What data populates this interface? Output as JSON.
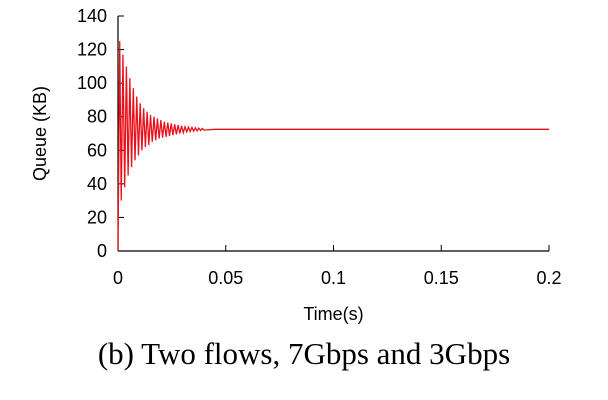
{
  "caption": "(b) Two flows, 7Gbps and 3Gbps",
  "chart_data": {
    "type": "line",
    "xlabel": "Time(s)",
    "ylabel": "Queue (KB)",
    "xlim": [
      0,
      0.2
    ],
    "ylim": [
      0,
      140
    ],
    "x_ticks": [
      0,
      0.05,
      0.1,
      0.15,
      0.2
    ],
    "x_tick_labels": [
      "0",
      "0.05",
      "0.1",
      "0.15",
      "0.2"
    ],
    "y_ticks": [
      0,
      20,
      40,
      60,
      80,
      100,
      120,
      140
    ],
    "y_tick_labels": [
      "0",
      "20",
      "40",
      "60",
      "80",
      "100",
      "120",
      "140"
    ],
    "grid": false,
    "series": [
      {
        "color": "#e8101a",
        "x": [
          0,
          0.0008,
          0.0015,
          0.0023,
          0.0031,
          0.0039,
          0.0047,
          0.0055,
          0.0063,
          0.0071,
          0.0079,
          0.0087,
          0.0095,
          0.0103,
          0.0111,
          0.0119,
          0.0127,
          0.0135,
          0.0143,
          0.0151,
          0.0159,
          0.0167,
          0.0175,
          0.0183,
          0.0191,
          0.0199,
          0.0207,
          0.0215,
          0.0223,
          0.0231,
          0.0239,
          0.0247,
          0.0255,
          0.0263,
          0.0271,
          0.0279,
          0.0287,
          0.0295,
          0.0303,
          0.0311,
          0.0319,
          0.0327,
          0.0335,
          0.0343,
          0.0351,
          0.0359,
          0.0367,
          0.0375,
          0.0383,
          0.0391,
          0.0399,
          0.045,
          0.06,
          0.08,
          0.1,
          0.12,
          0.14,
          0.16,
          0.18,
          0.2
        ],
        "y": [
          0,
          125,
          30,
          117,
          38,
          110,
          45,
          103,
          50,
          97,
          54,
          92,
          57,
          88,
          60,
          85,
          62,
          83,
          63,
          81,
          65,
          80,
          66,
          79,
          67,
          78,
          67.5,
          77,
          68,
          76.5,
          68.5,
          76,
          69,
          75.5,
          69.5,
          75,
          70,
          74.5,
          70.5,
          74,
          71,
          73.8,
          71.2,
          73.6,
          71.4,
          73.4,
          71.6,
          73.2,
          71.8,
          73,
          72,
          72.5,
          72.5,
          72.5,
          72.5,
          72.5,
          72.5,
          72.5,
          72.5,
          72.5
        ]
      }
    ]
  }
}
